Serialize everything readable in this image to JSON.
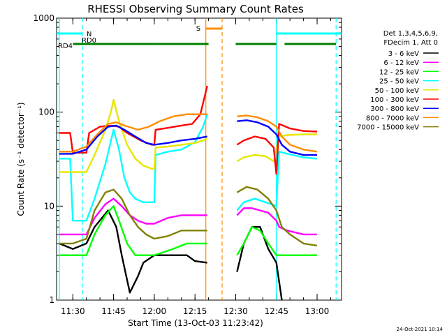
{
  "chart_data": {
    "type": "line",
    "title": "RHESSI Observing Summary Count Rates",
    "xlabel": "Start Time (13-Oct-03 11:23:42)",
    "ylabel": "Count Rate (s⁻¹ detector⁻¹)",
    "yscale": "log",
    "ylim": [
      1,
      1000
    ],
    "xlim_minutes": [
      -6,
      99
    ],
    "x_ticks": [
      {
        "t": 0,
        "label": "11:30"
      },
      {
        "t": 15,
        "label": "11:45"
      },
      {
        "t": 30,
        "label": "12:00"
      },
      {
        "t": 45,
        "label": "12:15"
      },
      {
        "t": 60,
        "label": "12:30"
      },
      {
        "t": 75,
        "label": "12:45"
      },
      {
        "t": 90,
        "label": "13:00"
      }
    ],
    "y_ticks": [
      {
        "v": 1,
        "label": "1"
      },
      {
        "v": 10,
        "label": "10"
      },
      {
        "v": 100,
        "label": "100"
      },
      {
        "v": 1000,
        "label": "1000"
      }
    ],
    "legend": {
      "header": [
        "Det 1,3,4,5,6,9,",
        "FDecim 1, Att 0"
      ],
      "position": "right"
    },
    "gap_minutes": [
      49.5,
      60.5
    ],
    "series": [
      {
        "name": "3 - 6 keV",
        "color": "#000000",
        "points": [
          [
            -6,
            null
          ],
          [
            -5,
            4
          ],
          [
            0,
            3.5
          ],
          [
            5,
            4
          ],
          [
            8,
            6
          ],
          [
            13,
            9
          ],
          [
            16,
            6
          ],
          [
            18,
            3
          ],
          [
            21,
            1.2
          ],
          [
            24,
            1.8
          ],
          [
            26,
            2.5
          ],
          [
            30,
            3
          ],
          [
            34,
            3
          ],
          [
            38,
            3
          ],
          [
            42,
            3
          ],
          [
            45,
            2.6
          ],
          [
            49.5,
            2.5
          ],
          [
            60.5,
            2
          ],
          [
            63,
            4
          ],
          [
            66,
            6
          ],
          [
            69,
            6
          ],
          [
            72,
            3.5
          ],
          [
            75,
            2.5
          ],
          [
            77,
            1
          ],
          [
            99,
            null
          ]
        ]
      },
      {
        "name": "6 - 12 keV",
        "color": "#ff00ff",
        "points": [
          [
            -6,
            null
          ],
          [
            -5,
            5
          ],
          [
            0,
            5
          ],
          [
            5,
            5
          ],
          [
            8,
            7.5
          ],
          [
            12,
            10.5
          ],
          [
            15,
            12
          ],
          [
            18,
            10
          ],
          [
            21,
            8
          ],
          [
            24,
            7
          ],
          [
            27,
            6.5
          ],
          [
            30,
            6.5
          ],
          [
            35,
            7.5
          ],
          [
            40,
            8
          ],
          [
            45,
            8
          ],
          [
            49.5,
            8
          ],
          [
            60.5,
            8
          ],
          [
            63,
            9.5
          ],
          [
            66,
            9.5
          ],
          [
            69,
            9
          ],
          [
            72,
            8.5
          ],
          [
            75,
            7
          ],
          [
            76,
            6
          ],
          [
            79,
            5.5
          ],
          [
            85,
            5
          ],
          [
            90,
            5
          ],
          [
            99,
            null
          ]
        ]
      },
      {
        "name": "12 - 25 keV",
        "color": "#00ff00",
        "points": [
          [
            -6,
            null
          ],
          [
            -5,
            3
          ],
          [
            0,
            3
          ],
          [
            5,
            3
          ],
          [
            8,
            5
          ],
          [
            12,
            8
          ],
          [
            15,
            10
          ],
          [
            17,
            7
          ],
          [
            20,
            4
          ],
          [
            23,
            3
          ],
          [
            26,
            3
          ],
          [
            30,
            3
          ],
          [
            33,
            3.2
          ],
          [
            38,
            3.6
          ],
          [
            42,
            4
          ],
          [
            45,
            4
          ],
          [
            49.5,
            4
          ],
          [
            60.5,
            3
          ],
          [
            63,
            4
          ],
          [
            66,
            6
          ],
          [
            69,
            5.5
          ],
          [
            72,
            4
          ],
          [
            75,
            3
          ],
          [
            78,
            3
          ],
          [
            85,
            3
          ],
          [
            90,
            3
          ],
          [
            99,
            null
          ]
        ]
      },
      {
        "name": "25 - 50 keV",
        "color": "#00ffff",
        "points": [
          [
            -6,
            null
          ],
          [
            -5,
            32
          ],
          [
            -1,
            32
          ],
          [
            0,
            7
          ],
          [
            5,
            7
          ],
          [
            8,
            12
          ],
          [
            12,
            28
          ],
          [
            15,
            65
          ],
          [
            17,
            40
          ],
          [
            19,
            20
          ],
          [
            21,
            14
          ],
          [
            23,
            12
          ],
          [
            26,
            11
          ],
          [
            30,
            11
          ],
          [
            30.5,
            35
          ],
          [
            35,
            38
          ],
          [
            40,
            40
          ],
          [
            45,
            48
          ],
          [
            48,
            70
          ],
          [
            49.5,
            95
          ],
          [
            60.5,
            9
          ],
          [
            63,
            11
          ],
          [
            67,
            12
          ],
          [
            71,
            11
          ],
          [
            75,
            10
          ],
          [
            76,
            38
          ],
          [
            79,
            36
          ],
          [
            85,
            33
          ],
          [
            90,
            32
          ],
          [
            99,
            null
          ]
        ]
      },
      {
        "name": "50 - 100 keV",
        "color": "#e6e600",
        "points": [
          [
            -6,
            null
          ],
          [
            -5,
            23
          ],
          [
            0,
            23
          ],
          [
            5,
            23
          ],
          [
            8,
            35
          ],
          [
            12,
            65
          ],
          [
            14,
            100
          ],
          [
            15,
            135
          ],
          [
            17,
            80
          ],
          [
            20,
            45
          ],
          [
            23,
            32
          ],
          [
            26,
            27
          ],
          [
            29,
            25
          ],
          [
            30,
            25
          ],
          [
            30.5,
            42
          ],
          [
            35,
            43
          ],
          [
            40,
            45
          ],
          [
            45,
            47
          ],
          [
            48,
            50
          ],
          [
            49.5,
            52
          ],
          [
            60.5,
            30
          ],
          [
            63,
            33
          ],
          [
            67,
            35
          ],
          [
            71,
            34
          ],
          [
            74,
            30
          ],
          [
            76,
            55
          ],
          [
            79,
            57
          ],
          [
            85,
            58
          ],
          [
            90,
            58
          ],
          [
            99,
            null
          ]
        ]
      },
      {
        "name": "100 - 300 keV",
        "color": "#ff0000",
        "points": [
          [
            -6,
            null
          ],
          [
            -5,
            60
          ],
          [
            -1,
            60
          ],
          [
            0,
            37
          ],
          [
            5,
            37
          ],
          [
            6,
            60
          ],
          [
            10,
            70
          ],
          [
            14,
            72
          ],
          [
            17,
            70
          ],
          [
            20,
            60
          ],
          [
            25,
            50
          ],
          [
            29,
            45
          ],
          [
            30,
            45
          ],
          [
            30.5,
            65
          ],
          [
            35,
            68
          ],
          [
            40,
            72
          ],
          [
            44,
            75
          ],
          [
            47,
            95
          ],
          [
            49.5,
            190
          ],
          [
            60.5,
            45
          ],
          [
            63,
            50
          ],
          [
            67,
            55
          ],
          [
            71,
            52
          ],
          [
            74,
            42
          ],
          [
            75,
            22
          ],
          [
            76,
            75
          ],
          [
            80,
            67
          ],
          [
            85,
            63
          ],
          [
            90,
            62
          ],
          [
            99,
            null
          ]
        ]
      },
      {
        "name": "300 - 800 keV",
        "color": "#0000ff",
        "points": [
          [
            -6,
            null
          ],
          [
            -5,
            36
          ],
          [
            0,
            36
          ],
          [
            5,
            40
          ],
          [
            9,
            55
          ],
          [
            13,
            70
          ],
          [
            16,
            72
          ],
          [
            19,
            65
          ],
          [
            23,
            55
          ],
          [
            27,
            47
          ],
          [
            30,
            45
          ],
          [
            35,
            47
          ],
          [
            40,
            50
          ],
          [
            45,
            52
          ],
          [
            49.5,
            55
          ],
          [
            60.5,
            80
          ],
          [
            64,
            82
          ],
          [
            68,
            78
          ],
          [
            72,
            70
          ],
          [
            75,
            58
          ],
          [
            77,
            45
          ],
          [
            80,
            38
          ],
          [
            85,
            35
          ],
          [
            90,
            35
          ],
          [
            99,
            null
          ]
        ]
      },
      {
        "name": "800 - 7000 keV",
        "color": "#ff8c00",
        "points": [
          [
            -6,
            null
          ],
          [
            -5,
            38
          ],
          [
            0,
            38
          ],
          [
            5,
            43
          ],
          [
            9,
            58
          ],
          [
            13,
            75
          ],
          [
            16,
            78
          ],
          [
            19,
            72
          ],
          [
            24,
            65
          ],
          [
            28,
            70
          ],
          [
            32,
            80
          ],
          [
            37,
            90
          ],
          [
            42,
            95
          ],
          [
            45,
            95
          ],
          [
            49.5,
            95
          ],
          [
            60.5,
            90
          ],
          [
            64,
            92
          ],
          [
            68,
            88
          ],
          [
            72,
            80
          ],
          [
            75,
            70
          ],
          [
            77,
            55
          ],
          [
            80,
            45
          ],
          [
            85,
            40
          ],
          [
            90,
            38
          ],
          [
            99,
            null
          ]
        ]
      },
      {
        "name": "7000 - 15000 keV",
        "color": "#808000",
        "points": [
          [
            -6,
            null
          ],
          [
            -5,
            4
          ],
          [
            0,
            4
          ],
          [
            5,
            4.5
          ],
          [
            8,
            9
          ],
          [
            12,
            14
          ],
          [
            15,
            15
          ],
          [
            18,
            12
          ],
          [
            21,
            8
          ],
          [
            24,
            6
          ],
          [
            27,
            5
          ],
          [
            30,
            4.5
          ],
          [
            35,
            4.8
          ],
          [
            40,
            5.5
          ],
          [
            45,
            5.5
          ],
          [
            49.5,
            5.5
          ],
          [
            60.5,
            14
          ],
          [
            64,
            16
          ],
          [
            68,
            15
          ],
          [
            72,
            12
          ],
          [
            75,
            9
          ],
          [
            77,
            6
          ],
          [
            80,
            5
          ],
          [
            85,
            4
          ],
          [
            90,
            3.8
          ],
          [
            99,
            null
          ]
        ]
      }
    ],
    "markers": [
      {
        "name": "RD0",
        "color": "#00ffff",
        "segments": [
          [
            -6,
            3.5
          ],
          [
            75,
            99
          ]
        ]
      },
      {
        "name": "RD4",
        "color": "#008000",
        "segments": [
          [
            0,
            30
          ],
          [
            30,
            50
          ],
          [
            60,
            75
          ],
          [
            78,
            97
          ]
        ]
      },
      {
        "name": "N",
        "color": "#00ffff",
        "segments": [
          [
            -6,
            3.5
          ]
        ]
      },
      {
        "name": "S",
        "color": "#ff8c00",
        "segments": [
          [
            49,
            55
          ]
        ]
      }
    ],
    "event_lines": [
      {
        "t": -5,
        "color": "#00ffff",
        "style": "solid"
      },
      {
        "t": 3.5,
        "color": "#00ffff",
        "style": "dashed"
      },
      {
        "t": 49,
        "color": "#ff8c00",
        "style": "solid"
      },
      {
        "t": 55,
        "color": "#ff8c00",
        "style": "dashed"
      },
      {
        "t": 75,
        "color": "#00ffff",
        "style": "solid"
      },
      {
        "t": 97,
        "color": "#00ffff",
        "style": "dashed"
      }
    ]
  },
  "footer_date": "24-Oct-2021 10:14"
}
